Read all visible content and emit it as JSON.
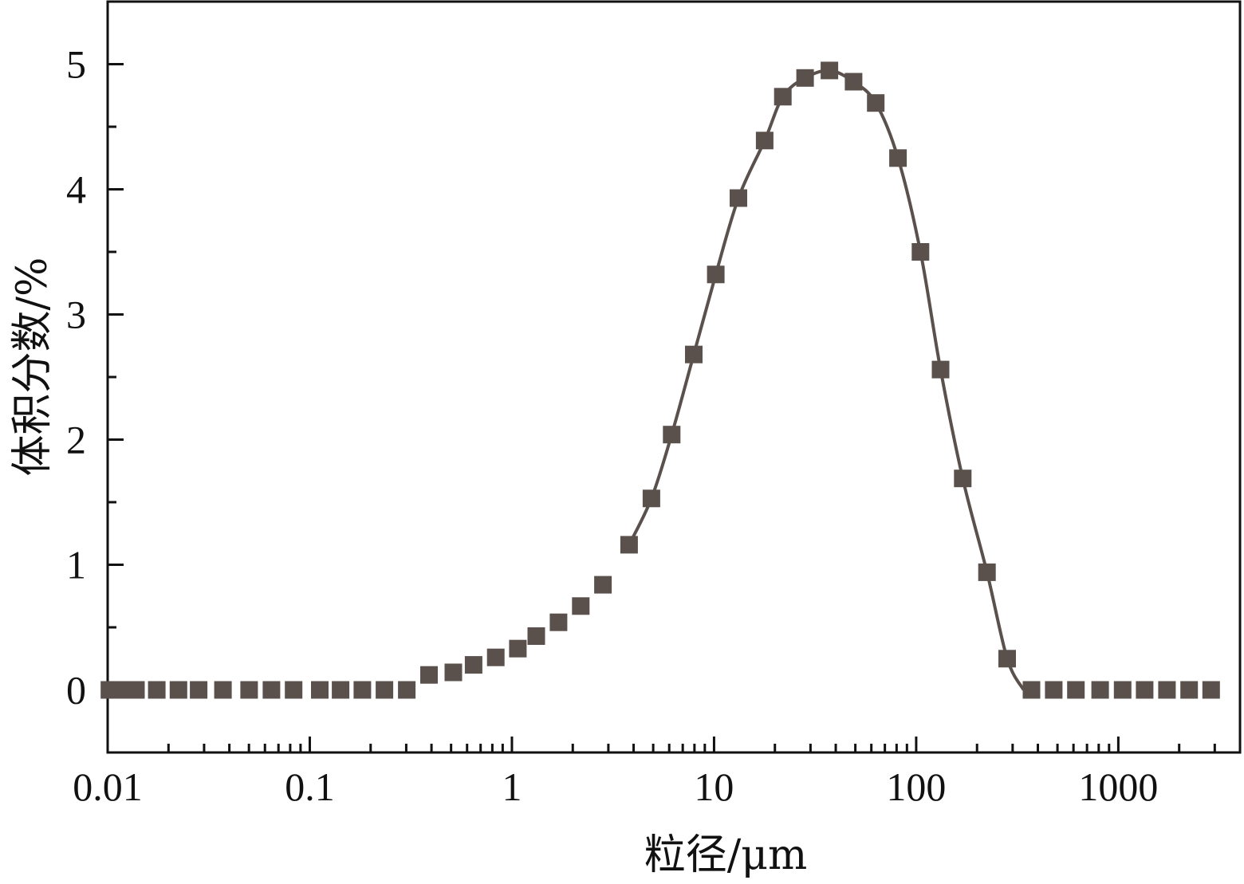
{
  "chart_data": {
    "type": "scatter",
    "xlabel": "粒径/μm",
    "ylabel": "体积分数/%",
    "x_scale": "log",
    "xlim": [
      0.01,
      4000
    ],
    "ylim": [
      -0.5,
      5.5
    ],
    "x_ticks": [
      {
        "value": 0.01,
        "label": "0.01"
      },
      {
        "value": 0.1,
        "label": "0.1"
      },
      {
        "value": 1,
        "label": "1"
      },
      {
        "value": 10,
        "label": "10"
      },
      {
        "value": 100,
        "label": "100"
      },
      {
        "value": 1000,
        "label": "1000"
      }
    ],
    "y_ticks": [
      {
        "value": 0,
        "label": "0"
      },
      {
        "value": 1,
        "label": "1"
      },
      {
        "value": 2,
        "label": "2"
      },
      {
        "value": 3,
        "label": "3"
      },
      {
        "value": 4,
        "label": "4"
      },
      {
        "value": 5,
        "label": "5"
      }
    ],
    "grid": false,
    "legend": "none",
    "colors": {
      "marker": "#5a514d",
      "line": "#5a514d",
      "axis": "#111111"
    },
    "series": [
      {
        "type": "scatter",
        "marker": "square",
        "x": [
          0.0102,
          0.0114,
          0.0138,
          0.0175,
          0.0224,
          0.0282,
          0.0372,
          0.0501,
          0.0646,
          0.0832,
          0.112,
          0.142,
          0.182,
          0.234,
          0.302,
          0.389,
          0.513,
          0.646,
          0.832,
          1.07,
          1.32,
          1.7,
          2.19,
          2.82,
          3.8,
          4.9,
          6.17,
          7.94,
          10.2,
          13.2,
          17.8,
          21.9,
          28.2,
          37.2,
          49.0,
          63.1,
          81.3,
          105,
          132,
          170,
          224,
          282,
          372,
          479,
          617,
          813,
          1050,
          1350,
          1740,
          2240,
          2880
        ],
        "y": [
          0,
          0,
          0,
          0,
          0,
          0,
          0,
          0,
          0,
          0,
          0,
          0,
          0,
          0,
          0,
          0.12,
          0.14,
          0.2,
          0.26,
          0.33,
          0.43,
          0.54,
          0.67,
          0.84,
          1.16,
          1.53,
          2.04,
          2.68,
          3.32,
          3.93,
          4.39,
          4.74,
          4.89,
          4.95,
          4.86,
          4.69,
          4.25,
          3.5,
          2.56,
          1.69,
          0.94,
          0.25,
          0,
          0,
          0,
          0,
          0,
          0,
          0,
          0,
          0
        ]
      },
      {
        "type": "line",
        "x": [
          3.8,
          4.9,
          6.17,
          7.94,
          10.2,
          13.2,
          17.8,
          21.9,
          28.2,
          37.2,
          49.0,
          63.1,
          81.3,
          105,
          132,
          170,
          224,
          282,
          340
        ],
        "y": [
          1.16,
          1.53,
          2.04,
          2.68,
          3.32,
          3.93,
          4.39,
          4.74,
          4.89,
          4.95,
          4.86,
          4.69,
          4.25,
          3.5,
          2.56,
          1.69,
          0.94,
          0.25,
          0
        ]
      }
    ]
  }
}
